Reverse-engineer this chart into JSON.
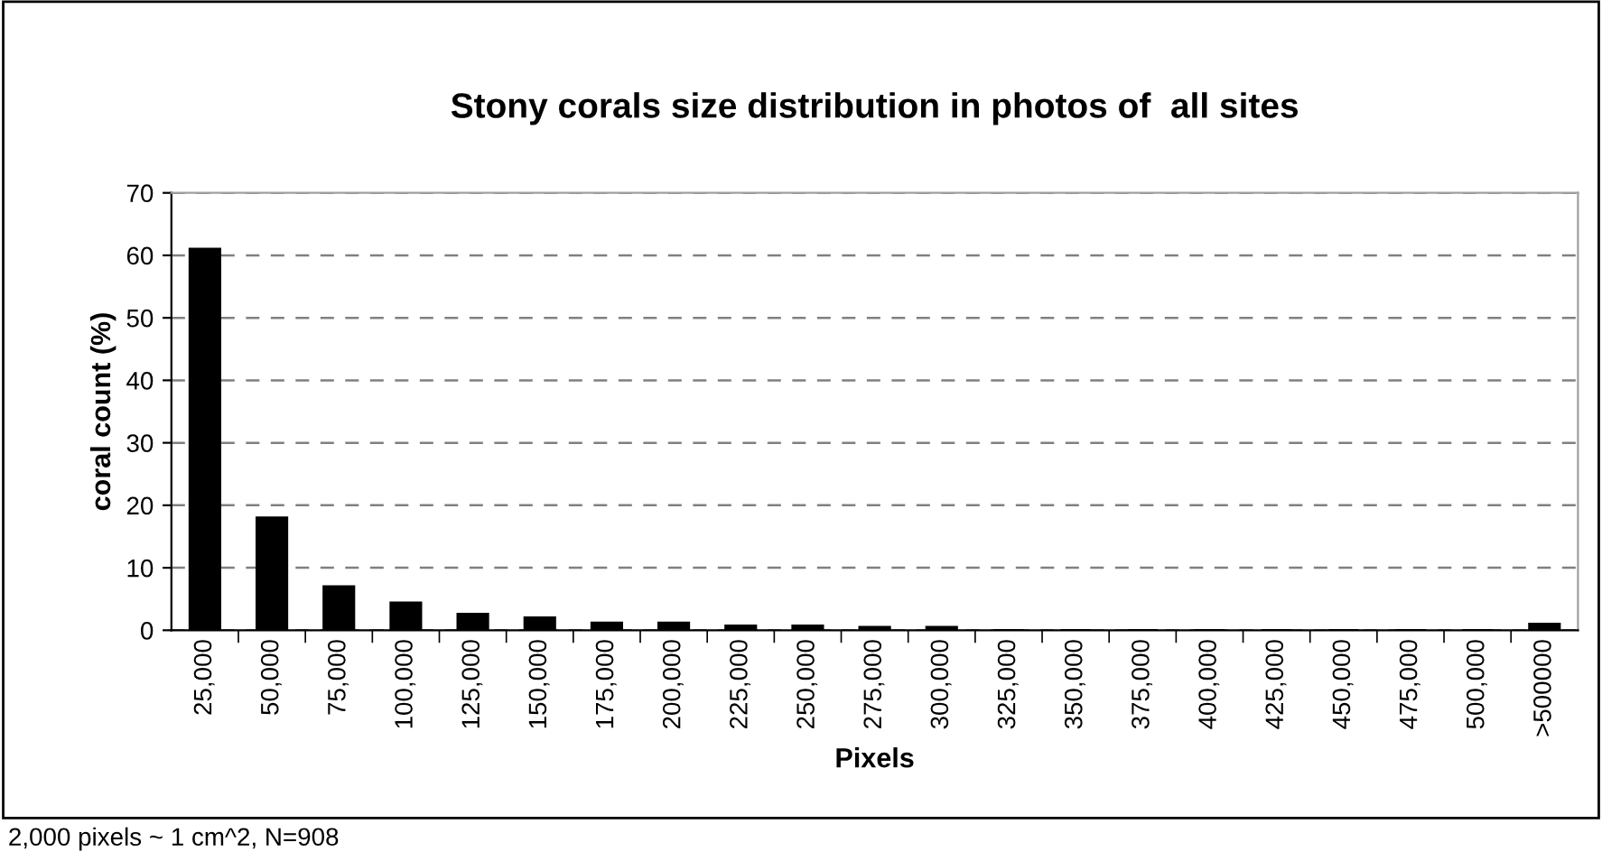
{
  "chart_data": {
    "type": "bar",
    "title": "Stony corals size distribution in photos of  all sites",
    "xlabel": "Pixels",
    "ylabel": "coral count (%)",
    "categories": [
      "25,000",
      "50,000",
      "75,000",
      "100,000",
      "125,000",
      "150,000",
      "175,000",
      "200,000",
      "225,000",
      "250,000",
      "275,000",
      "300,000",
      "325,000",
      "350,000",
      "375,000",
      "400,000",
      "425,000",
      "450,000",
      "475,000",
      "500,000",
      ">500000"
    ],
    "values": [
      61,
      18,
      7,
      4.4,
      2.6,
      2,
      1.2,
      1.2,
      0.7,
      0.7,
      0.5,
      0.5,
      0,
      0,
      0,
      0,
      0,
      0,
      0,
      0,
      1
    ],
    "color": "#000000",
    "ylim": [
      0,
      70
    ],
    "yticks": [
      0,
      10,
      20,
      30,
      40,
      50,
      60,
      70
    ],
    "grid": "y",
    "annotations": [
      "2,000 pixels ~ 1 cm^2, N=908"
    ]
  }
}
